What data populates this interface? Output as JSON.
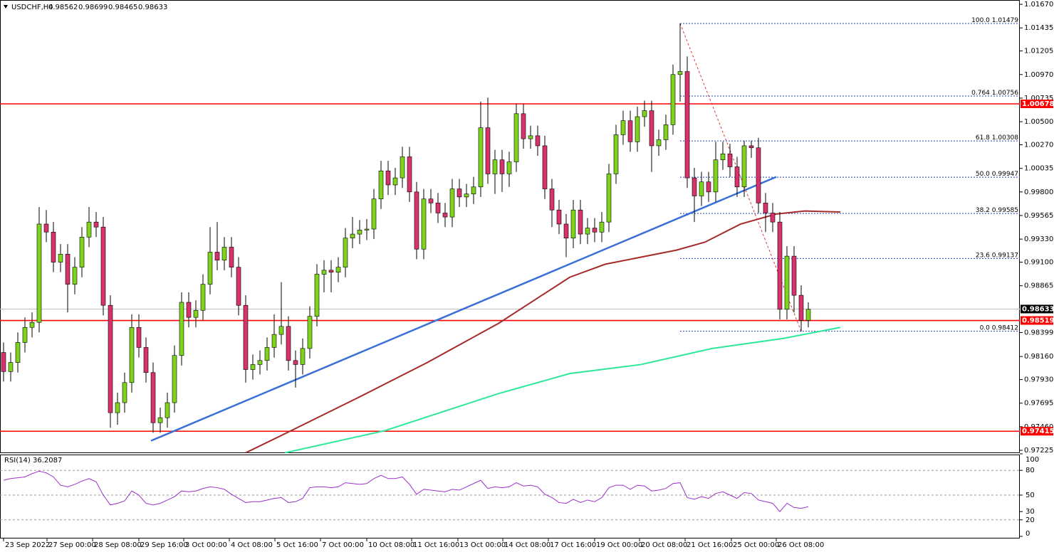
{
  "header": {
    "symbol": "USDCHF,H4",
    "ohlc": [
      0.98562,
      0.98699,
      0.98465,
      0.98633
    ]
  },
  "chart_data": {
    "type": "candlestick",
    "open": [
      0.982,
      0.9801,
      0.981,
      0.983,
      0.9845,
      0.985,
      0.9948,
      0.994,
      0.991,
      0.9918,
      0.9888,
      0.9905,
      0.9935,
      0.995,
      0.9945,
      0.9867,
      0.976,
      0.977,
      0.979,
      0.9845,
      0.9825,
      0.98,
      0.975,
      0.9755,
      0.977,
      0.9817,
      0.987,
      0.9855,
      0.9862,
      0.9888,
      0.992,
      0.9912,
      0.9925,
      0.9905,
      0.9867,
      0.9803,
      0.9808,
      0.9812,
      0.9825,
      0.9838,
      0.9846,
      0.9812,
      0.9808,
      0.9824,
      0.9856,
      0.9898,
      0.9902,
      0.99,
      0.9905,
      0.9934,
      0.9938,
      0.9942,
      0.9943,
      0.9973,
      1.0001,
      0.9987,
      0.9994,
      1.0015,
      0.998,
      0.9923,
      0.9973,
      0.9969,
      0.9959,
      0.9955,
      0.9983,
      0.9975,
      0.9978,
      0.9985,
      1.0044,
      0.9998,
      1.0012,
      0.9998,
      1.001,
      1.0058,
      1.0033,
      1.0036,
      1.0026,
      0.9983,
      0.9962,
      0.9948,
      0.9934,
      0.9962,
      0.9938,
      0.9944,
      0.994,
      0.995,
      0.9998,
      1.0037,
      1.0051,
      1.003,
      1.0055,
      1.0061,
      1.0026,
      1.0032,
      1.0047,
      1.0097,
      1.01,
      0.9994,
      0.9976,
      0.999,
      0.998,
      1.0012,
      1.0018,
      1.0005,
      0.9985,
      1.0026,
      1.0024,
      0.9969,
      0.9959,
      0.995,
      0.9863,
      0.9916,
      0.9877,
      0.9852
    ],
    "high": [
      0.983,
      0.982,
      0.984,
      0.9855,
      0.986,
      0.9965,
      0.9962,
      0.995,
      0.9928,
      0.9928,
      0.9915,
      0.9945,
      0.9965,
      0.996,
      0.9955,
      0.9877,
      0.978,
      0.98,
      0.9858,
      0.9858,
      0.9835,
      0.981,
      0.9765,
      0.978,
      0.9827,
      0.988,
      0.988,
      0.9872,
      0.9898,
      0.9945,
      0.995,
      0.9935,
      0.9935,
      0.9915,
      0.9877,
      0.9818,
      0.9822,
      0.9835,
      0.9858,
      0.989,
      0.9856,
      0.9822,
      0.9834,
      0.9866,
      0.9908,
      0.9912,
      0.9912,
      0.9915,
      0.9944,
      0.9955,
      0.9952,
      0.9953,
      0.9983,
      1.0011,
      1.0011,
      1.0004,
      1.0025,
      1.0025,
      0.999,
      0.9983,
      0.9983,
      0.9979,
      0.9969,
      0.9993,
      0.9993,
      0.9988,
      0.9995,
      1.007,
      1.0074,
      1.0022,
      1.0022,
      1.002,
      1.0068,
      1.0068,
      1.0046,
      1.0046,
      1.0036,
      0.9993,
      0.9972,
      0.9958,
      0.9972,
      0.9972,
      0.9954,
      0.9954,
      0.996,
      1.0008,
      1.0047,
      1.0061,
      1.0061,
      1.0065,
      1.0071,
      1.0071,
      1.0042,
      1.0057,
      1.0107,
      1.0148,
      1.0115,
      1.0004,
      1.0,
      1.0,
      1.003,
      1.003,
      1.0028,
      1.0015,
      1.0031,
      1.0031,
      1.0034,
      0.9979,
      0.9969,
      0.996,
      0.9926,
      0.9926,
      0.9887,
      0.987
    ],
    "low": [
      0.9791,
      0.9791,
      0.98,
      0.982,
      0.9835,
      0.984,
      0.993,
      0.99,
      0.99,
      0.986,
      0.9878,
      0.9895,
      0.9925,
      0.9935,
      0.9857,
      0.9745,
      0.9748,
      0.976,
      0.978,
      0.9815,
      0.979,
      0.974,
      0.974,
      0.9745,
      0.976,
      0.9807,
      0.9845,
      0.9845,
      0.9852,
      0.9878,
      0.9902,
      0.9902,
      0.9895,
      0.9857,
      0.979,
      0.9793,
      0.9798,
      0.9802,
      0.9815,
      0.9828,
      0.9802,
      0.9785,
      0.9798,
      0.9814,
      0.9846,
      0.988,
      0.988,
      0.989,
      0.9895,
      0.9924,
      0.9928,
      0.9932,
      0.9933,
      0.9963,
      0.9977,
      0.9977,
      0.9984,
      0.997,
      0.9913,
      0.9913,
      0.9959,
      0.9949,
      0.9945,
      0.9945,
      0.9965,
      0.9965,
      0.9968,
      0.9975,
      0.9988,
      0.9978,
      0.998,
      0.9985,
      1.0,
      1.0023,
      1.0023,
      1.0016,
      0.9973,
      0.9945,
      0.9938,
      0.9915,
      0.9924,
      0.9928,
      0.9928,
      0.993,
      0.993,
      0.994,
      0.9988,
      1.0027,
      1.002,
      1.002,
      1.0045,
      1.0,
      1.0016,
      1.0022,
      1.0037,
      1.007,
      0.9984,
      0.995,
      0.9966,
      0.997,
      0.997,
      1.0002,
      0.9995,
      0.9975,
      0.9975,
      1.0014,
      0.9959,
      0.994,
      0.994,
      0.9853,
      0.9853,
      0.986,
      0.9841,
      0.9845
    ],
    "close": [
      0.9801,
      0.981,
      0.983,
      0.9845,
      0.985,
      0.9948,
      0.994,
      0.991,
      0.9918,
      0.9888,
      0.9905,
      0.9935,
      0.995,
      0.9945,
      0.9867,
      0.976,
      0.977,
      0.979,
      0.9845,
      0.9825,
      0.98,
      0.975,
      0.9755,
      0.977,
      0.9817,
      0.987,
      0.9855,
      0.9862,
      0.9888,
      0.992,
      0.9912,
      0.9925,
      0.9905,
      0.9867,
      0.9803,
      0.9808,
      0.9812,
      0.9825,
      0.9838,
      0.9846,
      0.9812,
      0.9808,
      0.9824,
      0.9856,
      0.9898,
      0.9902,
      0.99,
      0.9905,
      0.9934,
      0.9938,
      0.9942,
      0.9943,
      0.9973,
      1.0001,
      0.9987,
      0.9994,
      1.0015,
      0.998,
      0.9923,
      0.9973,
      0.9969,
      0.9959,
      0.9955,
      0.9983,
      0.9975,
      0.9978,
      0.9985,
      1.0044,
      0.9998,
      1.0012,
      0.9998,
      1.001,
      1.0058,
      1.0033,
      1.0036,
      1.0026,
      0.9983,
      0.9962,
      0.9948,
      0.9934,
      0.9962,
      0.9938,
      0.9944,
      0.994,
      0.995,
      0.9998,
      1.0037,
      1.0051,
      1.003,
      1.0055,
      1.0061,
      1.0026,
      1.0032,
      1.0047,
      1.0097,
      1.01,
      0.9994,
      0.9976,
      0.999,
      0.998,
      1.0012,
      1.0018,
      1.0005,
      0.9985,
      1.0026,
      1.0024,
      0.9969,
      0.9959,
      0.995,
      0.9863,
      0.9916,
      0.9877,
      0.9852,
      0.9863
    ],
    "colors": {
      "up": "#7ed321",
      "down": "#d6336c",
      "outline": "#000000"
    },
    "xlim": [
      -0.5,
      142.7
    ],
    "ylim": [
      0.97204,
      1.01713
    ],
    "yticks": [
      {
        "value": 1.0167,
        "label": "1.01670"
      },
      1.01435,
      1.01205,
      {
        "value": 1.0097,
        "label": "1.00970"
      },
      1.00735,
      {
        "value": 1.005,
        "label": "1.00500"
      },
      {
        "value": 1.0027,
        "label": "1.00270"
      },
      1.00035,
      {
        "value": 0.998,
        "label": "0.99800"
      },
      0.99565,
      {
        "value": 0.9933,
        "label": "0.99330"
      },
      {
        "value": 0.991,
        "label": "0.99100"
      },
      0.98865,
      0.98399,
      {
        "value": 0.9816,
        "label": "0.98160"
      },
      {
        "value": 0.9793,
        "label": "0.97930"
      },
      0.97695,
      {
        "value": 0.9746,
        "label": "0.97460"
      },
      0.97225
    ],
    "xticks": [
      {
        "value": 0,
        "label": "23 Sep 2022"
      },
      {
        "value": 6.1,
        "label": "27 Sep 00:00"
      },
      {
        "value": 12.5,
        "label": "28 Sep 08:00"
      },
      {
        "value": 19,
        "label": "29 Sep 16:00"
      },
      {
        "value": 25.3,
        "label": "3 Oct 00:00"
      },
      {
        "value": 31.7,
        "label": "4 Oct 08:00"
      },
      {
        "value": 38.1,
        "label": "5 Oct 16:00"
      },
      {
        "value": 44.5,
        "label": "7 Oct 00:00"
      },
      {
        "value": 51,
        "label": "10 Oct 08:00"
      },
      {
        "value": 57.3,
        "label": "11 Oct 16:00"
      },
      {
        "value": 63.8,
        "label": "13 Oct 00:00"
      },
      {
        "value": 70.1,
        "label": "14 Oct 08:00"
      },
      {
        "value": 76.5,
        "label": "17 Oct 16:00"
      },
      {
        "value": 83,
        "label": "19 Oct 00:00"
      },
      {
        "value": 89.3,
        "label": "20 Oct 08:00"
      },
      {
        "value": 95.7,
        "label": "21 Oct 16:00"
      },
      {
        "value": 102.2,
        "label": "25 Oct 00:00"
      },
      {
        "value": 108.5,
        "label": "26 Oct 08:00"
      }
    ],
    "moving_averages": [
      {
        "color": "#a52a2a",
        "x": [
          34,
          39.5,
          49.5,
          59.5,
          69.5,
          74.5,
          79.5,
          84.5,
          94.5,
          98.5,
          103.5,
          108.5,
          112.5,
          117.5
        ],
        "values": [
          0.972,
          0.9739,
          0.9774,
          0.981,
          0.9849,
          0.9872,
          0.9895,
          0.9908,
          0.9922,
          0.993,
          0.9948,
          0.9958,
          0.9961,
          0.996
        ]
      },
      {
        "color": "#2ee89a",
        "x": [
          39.5,
          53.5,
          69.5,
          79.5,
          89.5,
          99.5,
          109.5,
          117.5
        ],
        "values": [
          0.972,
          0.9742,
          0.9779,
          0.9799,
          0.9808,
          0.9824,
          0.9834,
          0.9845
        ]
      }
    ],
    "trendline": {
      "color": "#3a6fd8",
      "x": [
        20.7,
        108.5
      ],
      "values": [
        0.9732,
        0.9995
      ]
    },
    "fib_line": {
      "color": "#e03030",
      "x": [
        95,
        112
      ],
      "values": [
        1.0148,
        0.9841
      ]
    },
    "fib": {
      "color": "#1f3fbf",
      "start": 95,
      "levels": [
        {
          "ratio": "100.0",
          "price": 1.01479
        },
        {
          "ratio": "0.764",
          "price": 1.00756
        },
        {
          "ratio": "61.8",
          "price": 1.00308
        },
        {
          "ratio": "50.0",
          "price": 0.99947
        },
        {
          "ratio": "38.2",
          "price": 0.99585
        },
        {
          "ratio": "23.6",
          "price": 0.99137
        },
        {
          "ratio": "0.0",
          "price": 0.98412
        }
      ]
    },
    "levels": [
      {
        "value": 1.00678,
        "color": "#ff0000"
      },
      {
        "value": 0.98519,
        "color": "#ff0000"
      },
      {
        "value": 0.97415,
        "color": "#ff0000"
      }
    ],
    "current_price": {
      "value": 0.98633,
      "color": "#c0c0c0"
    }
  },
  "rsi": {
    "label": "RSI(14) 36.2087",
    "color": "#9b30c8",
    "ylim": [
      0,
      100
    ],
    "yticks": [
      100,
      80,
      50,
      30,
      20,
      0
    ],
    "levels": [
      80,
      50,
      20
    ],
    "values": [
      68,
      70,
      71,
      72,
      76,
      79,
      77,
      72,
      62,
      60,
      63,
      67,
      70,
      66,
      50,
      38,
      40,
      43,
      55,
      50,
      40,
      38,
      40,
      44,
      48,
      55,
      54,
      55,
      58,
      60,
      59,
      57,
      51,
      46,
      41,
      42,
      42,
      44,
      46,
      47,
      41,
      42,
      46,
      59,
      60,
      60,
      59,
      60,
      65,
      64,
      63,
      64,
      70,
      74,
      70,
      70,
      72,
      63,
      51,
      57,
      56,
      55,
      54,
      57,
      56,
      60,
      64,
      68,
      58,
      60,
      59,
      60,
      65,
      61,
      62,
      60,
      51,
      47,
      41,
      40,
      45,
      41,
      44,
      42,
      47,
      59,
      62,
      62,
      57,
      62,
      61,
      55,
      56,
      58,
      64,
      65,
      47,
      45,
      48,
      46,
      52,
      54,
      50,
      46,
      53,
      52,
      44,
      42,
      40,
      30,
      40,
      35,
      34,
      36
    ]
  }
}
